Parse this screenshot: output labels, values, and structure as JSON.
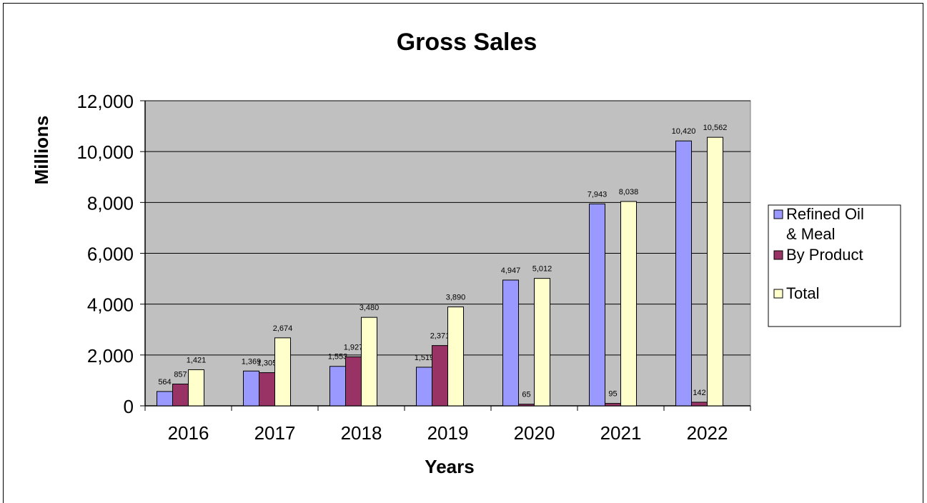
{
  "chart_data": {
    "type": "bar",
    "title": "Gross Sales",
    "xlabel": "Years",
    "ylabel": "Millions",
    "categories": [
      "2016",
      "2017",
      "2018",
      "2019",
      "2020",
      "2021",
      "2022"
    ],
    "series": [
      {
        "name": "Refined Oil & Meal",
        "legend_lines": [
          "Refined Oil",
          "& Meal"
        ],
        "color": "#9999FF",
        "values": [
          564,
          1369,
          1553,
          1519,
          4947,
          7943,
          10420
        ],
        "labels": [
          "564",
          "1,369",
          "1,553",
          "1,519",
          "4,947",
          "7,943",
          "10,420"
        ]
      },
      {
        "name": "By Product",
        "legend_lines": [
          "By Product"
        ],
        "color": "#993366",
        "values": [
          857,
          1305,
          1927,
          2371,
          65,
          95,
          142
        ],
        "labels": [
          "857",
          "1,305",
          "1,927",
          "2,371",
          "65",
          "95",
          "142"
        ]
      },
      {
        "name": "Total",
        "legend_lines": [
          "Total"
        ],
        "color": "#FFFFCC",
        "values": [
          1421,
          2674,
          3480,
          3890,
          5012,
          8038,
          10562
        ],
        "labels": [
          "1,421",
          "2,674",
          "3,480",
          "3,890",
          "5,012",
          "8,038",
          "10,562"
        ]
      }
    ],
    "ylim": [
      0,
      12000
    ],
    "yticks": [
      0,
      2000,
      4000,
      6000,
      8000,
      10000,
      12000
    ],
    "ytick_labels": [
      "0",
      "2,000",
      "4,000",
      "6,000",
      "8,000",
      "10,000",
      "12,000"
    ],
    "grid": true,
    "plot_background": "#C0C0C0",
    "legend_position": "right"
  }
}
